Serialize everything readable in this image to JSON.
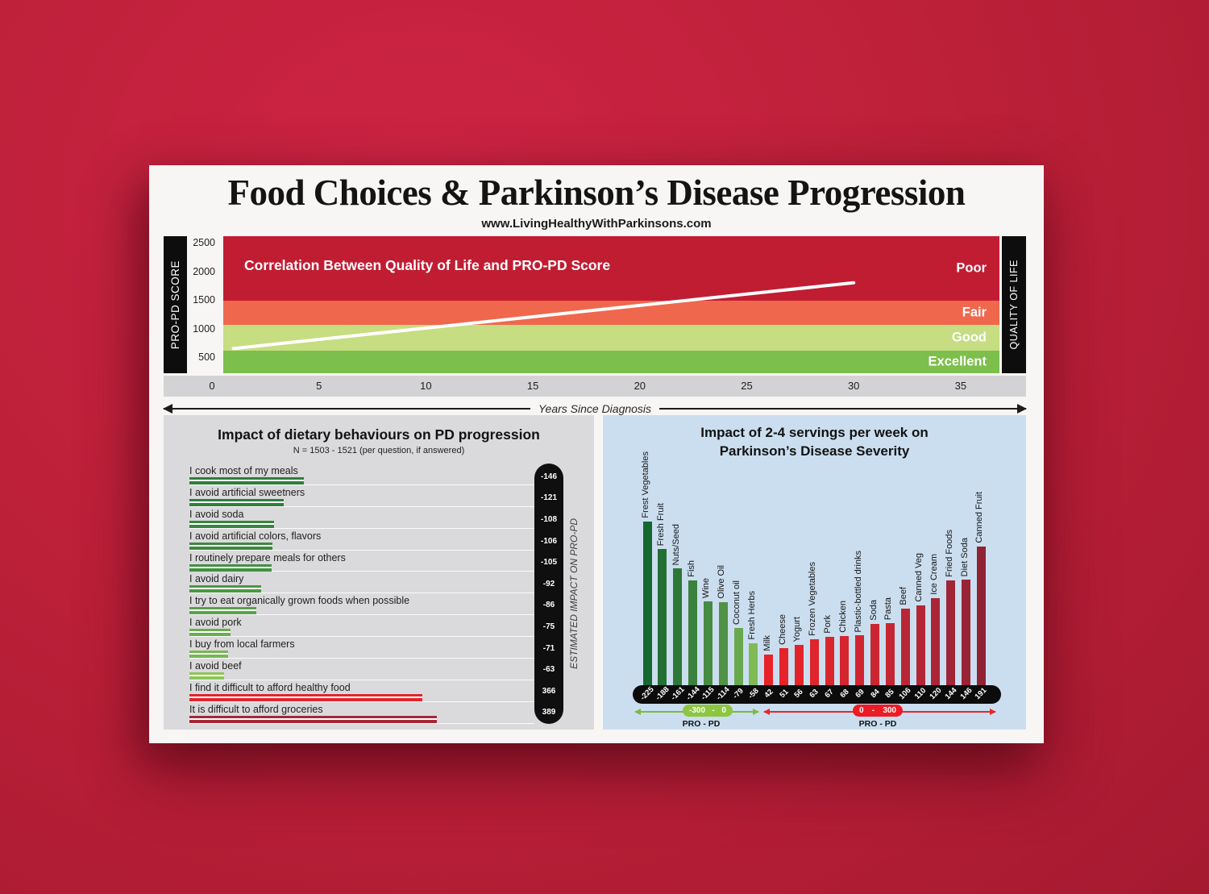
{
  "poster": {
    "title": "Food Choices & Parkinson’s Disease Progression",
    "website": "www.LivingHealthyWithParkinsons.com"
  },
  "chart_data": [
    {
      "id": "qol-correlation",
      "type": "area",
      "title": "Correlation Between Quality of Life and PRO-PD Score",
      "ylabel": "PRO-PD SCORE",
      "ylabel_right": "QUALITY OF LIFE",
      "xlabel": "Years Since Diagnosis",
      "y_ticks": [
        "2500",
        "2000",
        "1500",
        "1000",
        "500"
      ],
      "x_ticks": [
        "0",
        "5",
        "10",
        "15",
        "20",
        "25",
        "30",
        "35"
      ],
      "xlim": [
        0,
        37
      ],
      "ylim": [
        250,
        2600
      ],
      "grid": false,
      "bands": [
        {
          "label": "Poor",
          "value_range": [
            1500,
            2600
          ],
          "color": "#c01d33",
          "height_pct": 47.0
        },
        {
          "label": "Fair",
          "value_range": [
            1050,
            1500
          ],
          "color": "#ef684d",
          "height_pct": 17.6
        },
        {
          "label": "Good",
          "value_range": [
            620,
            1050
          ],
          "color": "#c6dd81",
          "height_pct": 18.9
        },
        {
          "label": "Excellent",
          "value_range": [
            250,
            620
          ],
          "color": "#7cbf4c",
          "height_pct": 16.5
        }
      ],
      "trend_line": {
        "description": "PRO-PD score rises with years since diagnosis",
        "points_year_score": [
          [
            1,
            650
          ],
          [
            30,
            1800
          ]
        ],
        "color": "#ffffff"
      }
    },
    {
      "id": "dietary-behaviours",
      "type": "bar",
      "orientation": "horizontal",
      "title": "Impact of dietary behaviours on PD progression",
      "subtitle": "N = 1503 - 1521 (per question, if answered)",
      "value_axis_label": "ESTIMATED IMPACT ON PRO-PD",
      "rows": [
        {
          "label": "I cook most of my meals",
          "value": -146,
          "color": "#2e7d3a"
        },
        {
          "label": "I avoid artificial sweetners",
          "value": -121,
          "color": "#2f803a"
        },
        {
          "label": "I avoid soda",
          "value": -108,
          "color": "#36853d"
        },
        {
          "label": "I avoid artificial colors, flavors",
          "value": -106,
          "color": "#3c8a3f"
        },
        {
          "label": "I routinely prepare meals for others",
          "value": -105,
          "color": "#429041"
        },
        {
          "label": "I avoid dairy",
          "value": -92,
          "color": "#4b9744"
        },
        {
          "label": "I try to eat organically grown foods when possible",
          "value": -86,
          "color": "#58a348"
        },
        {
          "label": "I avoid pork",
          "value": -75,
          "color": "#69ae4d"
        },
        {
          "label": "I buy from local farmers",
          "value": -71,
          "color": "#77b751"
        },
        {
          "label": "I avoid beef",
          "value": -63,
          "color": "#8cc557"
        },
        {
          "label": "I find it difficult to afford healthy food",
          "value": 366,
          "color": "#e2252b"
        },
        {
          "label": "It is difficult to afford groceries",
          "value": 389,
          "color": "#a52836"
        }
      ]
    },
    {
      "id": "servings-impact",
      "type": "bar",
      "orientation": "vertical",
      "title_lines": [
        "Impact of 2-4 servings per week on",
        "Parkinson’s Disease Severity"
      ],
      "bars": [
        {
          "label": "Frest Vegetables",
          "value": -225,
          "color": "#15682f"
        },
        {
          "label": "Fresh Fruit",
          "value": -188,
          "color": "#246f33"
        },
        {
          "label": "Nuts/Seed",
          "value": -161,
          "color": "#2e7837"
        },
        {
          "label": "Fish",
          "value": -144,
          "color": "#39813c"
        },
        {
          "label": "Wine",
          "value": -115,
          "color": "#468b41"
        },
        {
          "label": "Olive Oil",
          "value": -114,
          "color": "#4f9245"
        },
        {
          "label": "Coconut oil",
          "value": -79,
          "color": "#68a94e"
        },
        {
          "label": "Fresh Herbs",
          "value": -58,
          "color": "#7fbb55"
        },
        {
          "label": "Milk",
          "value": 42,
          "color": "#e72228"
        },
        {
          "label": "Cheese",
          "value": 51,
          "color": "#e52329"
        },
        {
          "label": "Yogurt",
          "value": 56,
          "color": "#e2242a"
        },
        {
          "label": "Frozen Vegetables",
          "value": 63,
          "color": "#de242c"
        },
        {
          "label": "Pork",
          "value": 67,
          "color": "#da252d"
        },
        {
          "label": "Chicken",
          "value": 68,
          "color": "#d5252f"
        },
        {
          "label": "Plastic-bottled drinks",
          "value": 69,
          "color": "#d02530"
        },
        {
          "label": "Soda",
          "value": 84,
          "color": "#ca2632"
        },
        {
          "label": "Pasta",
          "value": 85,
          "color": "#c52633"
        },
        {
          "label": "Beef",
          "value": 106,
          "color": "#b92635"
        },
        {
          "label": "Canned Veg",
          "value": 110,
          "color": "#b22636"
        },
        {
          "label": "Ice Cream",
          "value": 120,
          "color": "#aa2637"
        },
        {
          "label": "Fried Foods",
          "value": 144,
          "color": "#9f2537"
        },
        {
          "label": "Diet Soda",
          "value": 146,
          "color": "#992436"
        },
        {
          "label": "Canned Fruit",
          "value": 191,
          "color": "#8f2334"
        }
      ],
      "negative_axis": {
        "range_start": "-300",
        "range_sep": "-",
        "range_end": "0",
        "label": "PRO - PD",
        "color": "#8dc63f"
      },
      "positive_axis": {
        "range_start": "0",
        "range_sep": "-",
        "range_end": "300",
        "label": "PRO - PD",
        "color": "#ed1c24"
      }
    }
  ]
}
